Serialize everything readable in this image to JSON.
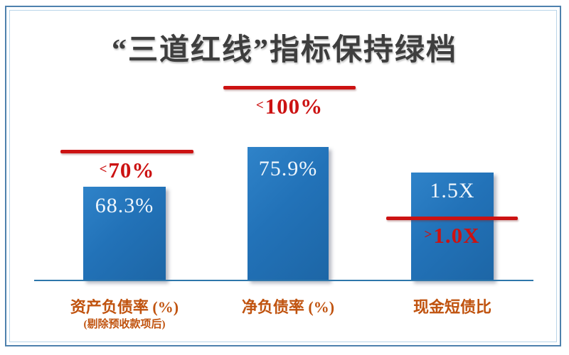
{
  "title": "“三道红线”指标保持绿档",
  "chart_data": {
    "type": "bar",
    "title": "“三道红线”指标保持绿档",
    "categories": [
      "资产负债率 (%)",
      "净负债率 (%)",
      "现金短债比"
    ],
    "values": [
      68.3,
      75.9,
      1.5
    ],
    "xlabel": "",
    "ylabel": "",
    "legend": "none",
    "grid": "off",
    "bars": [
      {
        "category": "资产负债率 (%)",
        "note": "(剔除预收款项后)",
        "value": 68.3,
        "value_label": "68.3%",
        "threshold_operator": "<",
        "threshold_value": "70%",
        "threshold_position": "above-bar"
      },
      {
        "category": "净负债率 (%)",
        "note": "",
        "value": 75.9,
        "value_label": "75.9%",
        "threshold_operator": "<",
        "threshold_value": "100%",
        "threshold_position": "above-bar"
      },
      {
        "category": "现金短债比",
        "note": "",
        "value": 1.5,
        "value_label": "1.5X",
        "threshold_operator": ">",
        "threshold_value": "1.0X",
        "threshold_position": "crossing-bar"
      }
    ],
    "colors": {
      "bar": "#2272b8",
      "threshold_line": "#cc1212",
      "threshold_text": "#cc1212",
      "value_text": "#eff6fc",
      "category_label": "#c0530f",
      "baseline": "#2e77ab",
      "title_text": "#3e3e3e",
      "frame_outer": "#4e81ad",
      "frame_inner": "#b9d5e9"
    }
  }
}
